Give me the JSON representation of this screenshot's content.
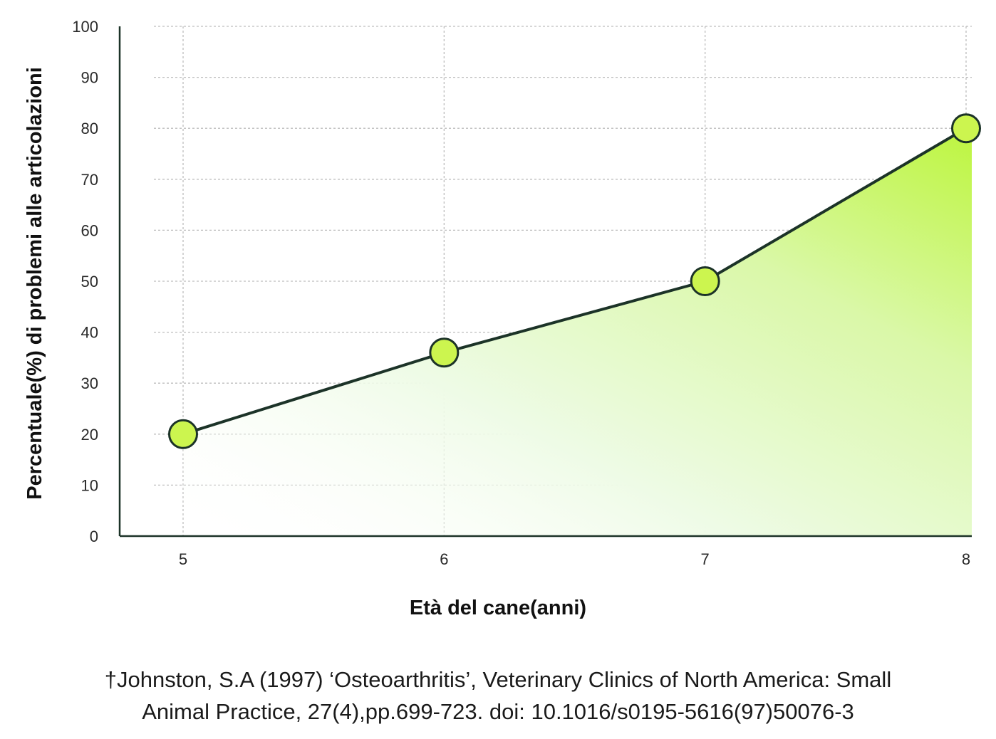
{
  "chart_data": {
    "type": "area",
    "x": [
      5,
      6,
      7,
      8
    ],
    "series": [
      {
        "values": [
          20,
          36,
          50,
          80
        ]
      }
    ],
    "xlabel": "Età del cane(anni)",
    "ylabel": "Percentuale(%) di problemi alle articolazioni",
    "xticks": [
      "5",
      "6",
      "7",
      "8"
    ],
    "yticks": [
      "0",
      "10",
      "20",
      "30",
      "40",
      "50",
      "60",
      "70",
      "80",
      "90",
      "100"
    ],
    "ylim": [
      0,
      100
    ],
    "xlim": [
      5,
      8
    ],
    "grid": true,
    "colors": {
      "line": "#1c3328",
      "marker_fill": "#ccf54f",
      "area_light": "#ffffff",
      "area_mid": "#e6fbd0",
      "area_strong": "#c4f74a",
      "grid": "#bdbdbd"
    }
  },
  "source": {
    "line1": "†Johnston, S.A (1997) ‘Osteoarthritis’, Veterinary Clinics of North America: Small",
    "line2": "Animal Practice, 27(4),pp.699-723. doi: 10.1016/s0195-5616(97)50076-3"
  }
}
